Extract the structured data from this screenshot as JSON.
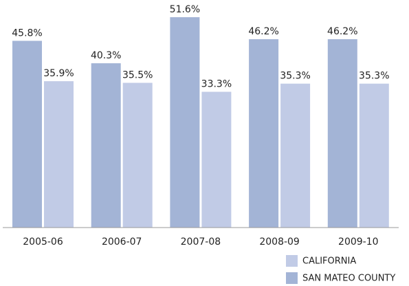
{
  "chart_data": {
    "type": "bar",
    "categories": [
      "2005-06",
      "2006-07",
      "2007-08",
      "2008-09",
      "2009-10"
    ],
    "series": [
      {
        "name": "SAN MATEO COUNTY",
        "color": "#a3b4d6",
        "values": [
          45.8,
          40.3,
          51.6,
          46.2,
          46.2
        ],
        "value_labels": [
          "45.8%",
          "40.3%",
          "51.6%",
          "46.2%",
          "46.2%"
        ]
      },
      {
        "name": "CALIFORNIA",
        "color": "#c1cbe6",
        "values": [
          35.9,
          35.5,
          33.3,
          35.3,
          35.3
        ],
        "value_labels": [
          "35.9%",
          "35.5%",
          "33.3%",
          "35.3%",
          "35.3%"
        ]
      }
    ]
  }
}
